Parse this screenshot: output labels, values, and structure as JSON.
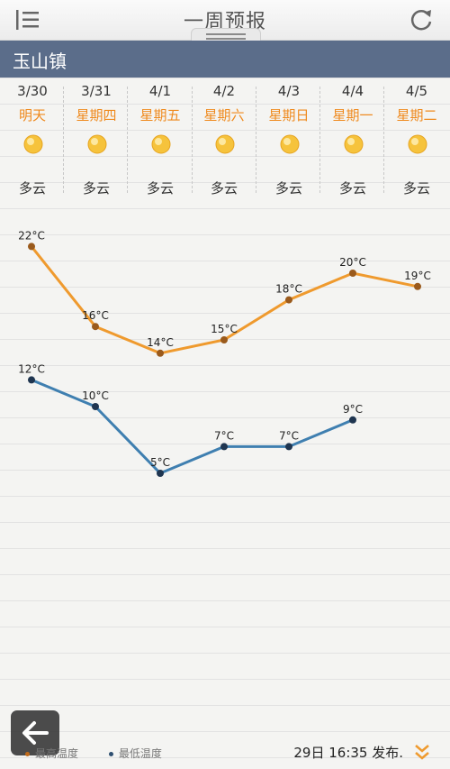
{
  "header": {
    "title": "一周预报",
    "menu_icon": "list-icon",
    "refresh_icon": "refresh-icon"
  },
  "location": "玉山镇",
  "days": [
    {
      "date": "3/30",
      "weekday": "明天",
      "condition": "多云",
      "icon": "sun-icon"
    },
    {
      "date": "3/31",
      "weekday": "星期四",
      "condition": "多云",
      "icon": "sun-icon"
    },
    {
      "date": "4/1",
      "weekday": "星期五",
      "condition": "多云",
      "icon": "sun-icon"
    },
    {
      "date": "4/2",
      "weekday": "星期六",
      "condition": "多云",
      "icon": "sun-icon"
    },
    {
      "date": "4/3",
      "weekday": "星期日",
      "condition": "多云",
      "icon": "sun-icon"
    },
    {
      "date": "4/4",
      "weekday": "星期一",
      "condition": "多云",
      "icon": "sun-icon"
    },
    {
      "date": "4/5",
      "weekday": "星期二",
      "condition": "多云",
      "icon": "sun-icon"
    }
  ],
  "chart_data": {
    "type": "line",
    "x": [
      "3/30",
      "3/31",
      "4/1",
      "4/2",
      "4/3",
      "4/4",
      "4/5"
    ],
    "series": [
      {
        "name": "最高温度",
        "color": "#ef9a2e",
        "values": [
          22,
          16,
          14,
          15,
          18,
          20,
          19
        ],
        "labels": [
          "22°C",
          "16°C",
          "14°C",
          "15°C",
          "18°C",
          "20°C",
          "19°C"
        ]
      },
      {
        "name": "最低温度",
        "color": "#3f7fb0",
        "values": [
          12,
          10,
          5,
          7,
          7,
          9,
          null
        ],
        "labels": [
          "12°C",
          "10°C",
          "5°C",
          "7°C",
          "7°C",
          "9°C",
          ""
        ]
      }
    ],
    "unit": "°C",
    "grid": "horizontal lines"
  },
  "footer": {
    "legend_high": "最高温度",
    "legend_low": "最低温度",
    "published": "29日 16:35 发布.",
    "back_icon": "arrow-left-icon",
    "expand_icon": "chevron-double-down-icon"
  },
  "colors": {
    "high": "#ef9a2e",
    "low": "#3f7fb0",
    "accent": "#ef8a1e",
    "location_bar": "#5b6d8a"
  }
}
